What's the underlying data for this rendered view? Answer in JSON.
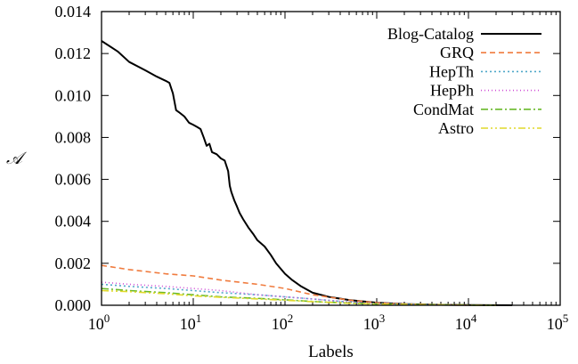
{
  "chart_data": {
    "type": "line",
    "xlabel": "Labels",
    "ylabel": "𝒜",
    "x_scale": "log",
    "xlim": [
      1,
      100000
    ],
    "ylim": [
      0,
      0.014
    ],
    "grid": false,
    "legend_position": "top-right",
    "x_ticks": [
      1,
      10,
      100,
      1000,
      10000,
      100000
    ],
    "x_tick_labels": [
      {
        "base": "10",
        "exp": "0"
      },
      {
        "base": "10",
        "exp": "1"
      },
      {
        "base": "10",
        "exp": "2"
      },
      {
        "base": "10",
        "exp": "3"
      },
      {
        "base": "10",
        "exp": "4"
      },
      {
        "base": "10",
        "exp": "5"
      }
    ],
    "y_ticks": [
      0,
      0.002,
      0.004,
      0.006,
      0.008,
      0.01,
      0.012,
      0.014
    ],
    "y_tick_labels": [
      "0.000",
      "0.002",
      "0.004",
      "0.006",
      "0.008",
      "0.010",
      "0.012",
      "0.014"
    ],
    "series": [
      {
        "name": "Blog-Catalog",
        "color": "#000000",
        "dash": "solid",
        "x": [
          1,
          1.5,
          2,
          3,
          4,
          5,
          5.5,
          6,
          6.5,
          7,
          8,
          9,
          10,
          11,
          12,
          13,
          14,
          15,
          16,
          18,
          20,
          22,
          24,
          25,
          26,
          28,
          30,
          32,
          35,
          40,
          45,
          50,
          60,
          70,
          80,
          100,
          120,
          150,
          200,
          300,
          500,
          1000,
          2000,
          5000,
          10000,
          30000
        ],
        "y": [
          0.0126,
          0.0121,
          0.0116,
          0.0112,
          0.0109,
          0.0107,
          0.0106,
          0.0101,
          0.0093,
          0.0092,
          0.009,
          0.0087,
          0.0086,
          0.0085,
          0.0084,
          0.008,
          0.0076,
          0.0077,
          0.0073,
          0.0072,
          0.007,
          0.0069,
          0.0064,
          0.0057,
          0.0054,
          0.005,
          0.0047,
          0.0044,
          0.0041,
          0.0037,
          0.0034,
          0.0031,
          0.0028,
          0.0024,
          0.002,
          0.0015,
          0.0012,
          0.0009,
          0.0006,
          0.0004,
          0.00025,
          0.00012,
          6e-05,
          2e-05,
          1e-05,
          0
        ]
      },
      {
        "name": "GRQ",
        "color": "#f07b3e",
        "dash": "6,4",
        "x": [
          1,
          2,
          5,
          10,
          20,
          50,
          100,
          200,
          500,
          1000,
          2000,
          5000,
          10000
        ],
        "y": [
          0.0019,
          0.0017,
          0.0015,
          0.0014,
          0.0012,
          0.001,
          0.0008,
          0.0005,
          0.00025,
          0.00012,
          6e-05,
          2e-05,
          0
        ]
      },
      {
        "name": "HepTh",
        "color": "#4fa7c9",
        "dash": "2,3",
        "x": [
          1,
          2,
          5,
          10,
          20,
          50,
          100,
          200,
          500,
          1000,
          3000,
          10000
        ],
        "y": [
          0.001,
          0.0009,
          0.0008,
          0.0007,
          0.0006,
          0.0005,
          0.0004,
          0.0003,
          0.00015,
          8e-05,
          3e-05,
          0
        ]
      },
      {
        "name": "HepPh",
        "color": "#d04fd6",
        "dash": "1,3",
        "x": [
          1,
          2,
          5,
          10,
          20,
          50,
          100,
          200,
          500,
          1000,
          3000,
          10000
        ],
        "y": [
          0.0011,
          0.001,
          0.0009,
          0.0008,
          0.0007,
          0.0005,
          0.0004,
          0.0003,
          0.00015,
          8e-05,
          3e-05,
          0
        ]
      },
      {
        "name": "CondMat",
        "color": "#6ab92a",
        "dash": "8,3,2,3",
        "x": [
          1,
          2,
          5,
          10,
          20,
          50,
          100,
          200,
          500,
          1000,
          3000,
          10000,
          20000
        ],
        "y": [
          0.0008,
          0.0007,
          0.0006,
          0.0005,
          0.0004,
          0.00033,
          0.00026,
          0.00018,
          0.0001,
          6e-05,
          3e-05,
          1e-05,
          0
        ]
      },
      {
        "name": "Astro",
        "color": "#e0d92a",
        "dash": "8,3,2,3,2,3",
        "x": [
          1,
          2,
          5,
          10,
          20,
          50,
          100,
          200,
          500,
          1000,
          3000,
          10000,
          20000
        ],
        "y": [
          0.0007,
          0.00065,
          0.00055,
          0.00045,
          0.00038,
          0.0003,
          0.00024,
          0.00017,
          0.0001,
          6e-05,
          3e-05,
          1e-05,
          0
        ]
      }
    ]
  }
}
